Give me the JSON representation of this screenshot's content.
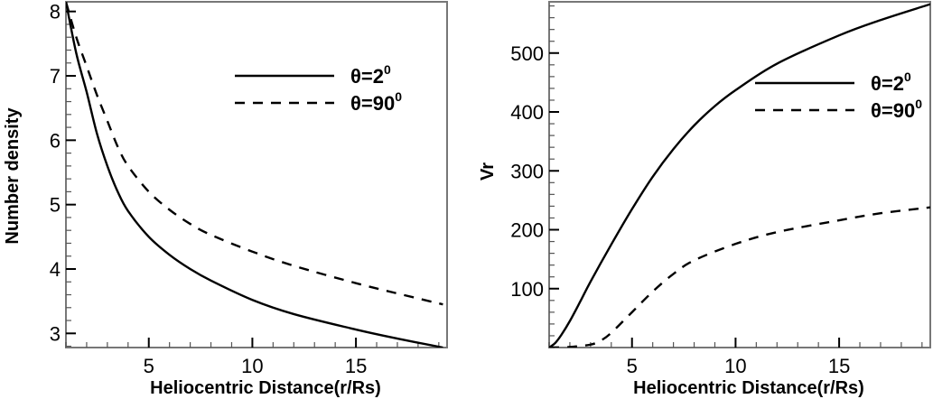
{
  "chart_data": [
    {
      "type": "line",
      "title": "",
      "xlabel": "Heliocentric Distance(r/Rs)",
      "ylabel": "Number density",
      "xlim": [
        1.0,
        19.4
      ],
      "ylim": [
        2.78,
        8.15
      ],
      "xticks": [
        5,
        10,
        15
      ],
      "xtick_labels": [
        "5",
        "10",
        "15"
      ],
      "yticks": [
        3,
        4,
        5,
        6,
        7,
        8
      ],
      "ytick_labels": [
        "3",
        "4",
        "5",
        "6",
        "7",
        "8"
      ],
      "x_minor_step": 1,
      "y_minor_step": 0.2,
      "grid": false,
      "legend_position": "upper right",
      "series": [
        {
          "name": "θ=2⁰",
          "label_base": "θ=2",
          "label_sup": "0",
          "style": "solid",
          "x": [
            1.0,
            1.5,
            2,
            2.5,
            3,
            3.5,
            4,
            5,
            6,
            7,
            8,
            10,
            12,
            15,
            17,
            19.2
          ],
          "y": [
            8.15,
            7.35,
            6.75,
            6.1,
            5.6,
            5.2,
            4.9,
            4.5,
            4.22,
            4.0,
            3.82,
            3.52,
            3.3,
            3.06,
            2.92,
            2.78
          ]
        },
        {
          "name": "θ=90⁰",
          "label_base": "θ=90",
          "label_sup": "0",
          "style": "dashed",
          "x": [
            1.0,
            1.5,
            2,
            2.5,
            3,
            3.5,
            4,
            5,
            6,
            7,
            8,
            10,
            12,
            15,
            17,
            19.2
          ],
          "y": [
            8.15,
            7.6,
            7.15,
            6.7,
            6.3,
            5.9,
            5.6,
            5.2,
            4.92,
            4.7,
            4.53,
            4.27,
            4.05,
            3.78,
            3.62,
            3.45
          ]
        }
      ]
    },
    {
      "type": "line",
      "title": "",
      "xlabel": "Heliocentric Distance(r/Rs)",
      "ylabel": "Vr",
      "xlim": [
        1.0,
        19.4
      ],
      "ylim": [
        0,
        587
      ],
      "xticks": [
        5,
        10,
        15
      ],
      "xtick_labels": [
        "5",
        "10",
        "15"
      ],
      "yticks": [
        100,
        200,
        300,
        400,
        500
      ],
      "ytick_labels": [
        "100",
        "200",
        "300",
        "400",
        "500"
      ],
      "x_minor_step": 1,
      "y_minor_step": 20,
      "grid": false,
      "legend_position": "upper right (below curve)",
      "series": [
        {
          "name": "θ=2⁰",
          "label_base": "θ=2",
          "label_sup": "0",
          "style": "solid",
          "x": [
            1.0,
            1.3,
            1.6,
            2,
            2.5,
            3,
            4,
            5,
            6,
            7,
            8,
            9,
            10,
            12,
            15,
            17,
            19.4
          ],
          "y": [
            0,
            8,
            22,
            45,
            78,
            112,
            175,
            235,
            290,
            337,
            377,
            410,
            437,
            482,
            530,
            556,
            583
          ]
        },
        {
          "name": "θ=90⁰",
          "label_base": "θ=90",
          "label_sup": "0",
          "style": "dashed",
          "x": [
            1.0,
            2,
            3,
            3.5,
            4,
            5,
            6,
            7,
            8,
            10,
            12,
            15,
            17,
            19.4
          ],
          "y": [
            0,
            1,
            5,
            12,
            25,
            60,
            95,
            125,
            148,
            176,
            196,
            216,
            228,
            238
          ]
        }
      ]
    }
  ],
  "panels": {
    "left": {
      "ylabel": "Number density",
      "xlabel": "Heliocentric Distance(r/Rs)"
    },
    "right": {
      "ylabel": "Vr",
      "xlabel": "Heliocentric Distance(r/Rs)"
    }
  }
}
